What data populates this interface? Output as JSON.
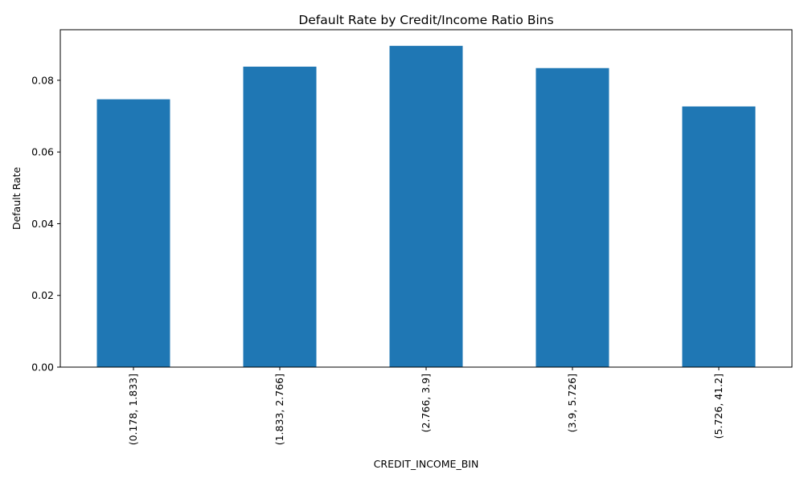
{
  "chart_data": {
    "type": "bar",
    "title": "Default Rate by Credit/Income Ratio Bins",
    "xlabel": "CREDIT_INCOME_BIN",
    "ylabel": "Default Rate",
    "categories": [
      "(0.178, 1.833]",
      "(1.833, 2.766]",
      "(2.766, 3.9]",
      "(3.9, 5.726]",
      "(5.726, 41.2]"
    ],
    "values": [
      0.0747,
      0.0838,
      0.0896,
      0.0834,
      0.0727
    ],
    "yticks": [
      "0.00",
      "0.02",
      "0.04",
      "0.06",
      "0.08"
    ],
    "ytick_values": [
      0,
      0.02,
      0.04,
      0.06,
      0.08
    ],
    "ylim": [
      0,
      0.0941
    ],
    "bar_color": "#1f77b4",
    "grid": false,
    "legend": false
  }
}
